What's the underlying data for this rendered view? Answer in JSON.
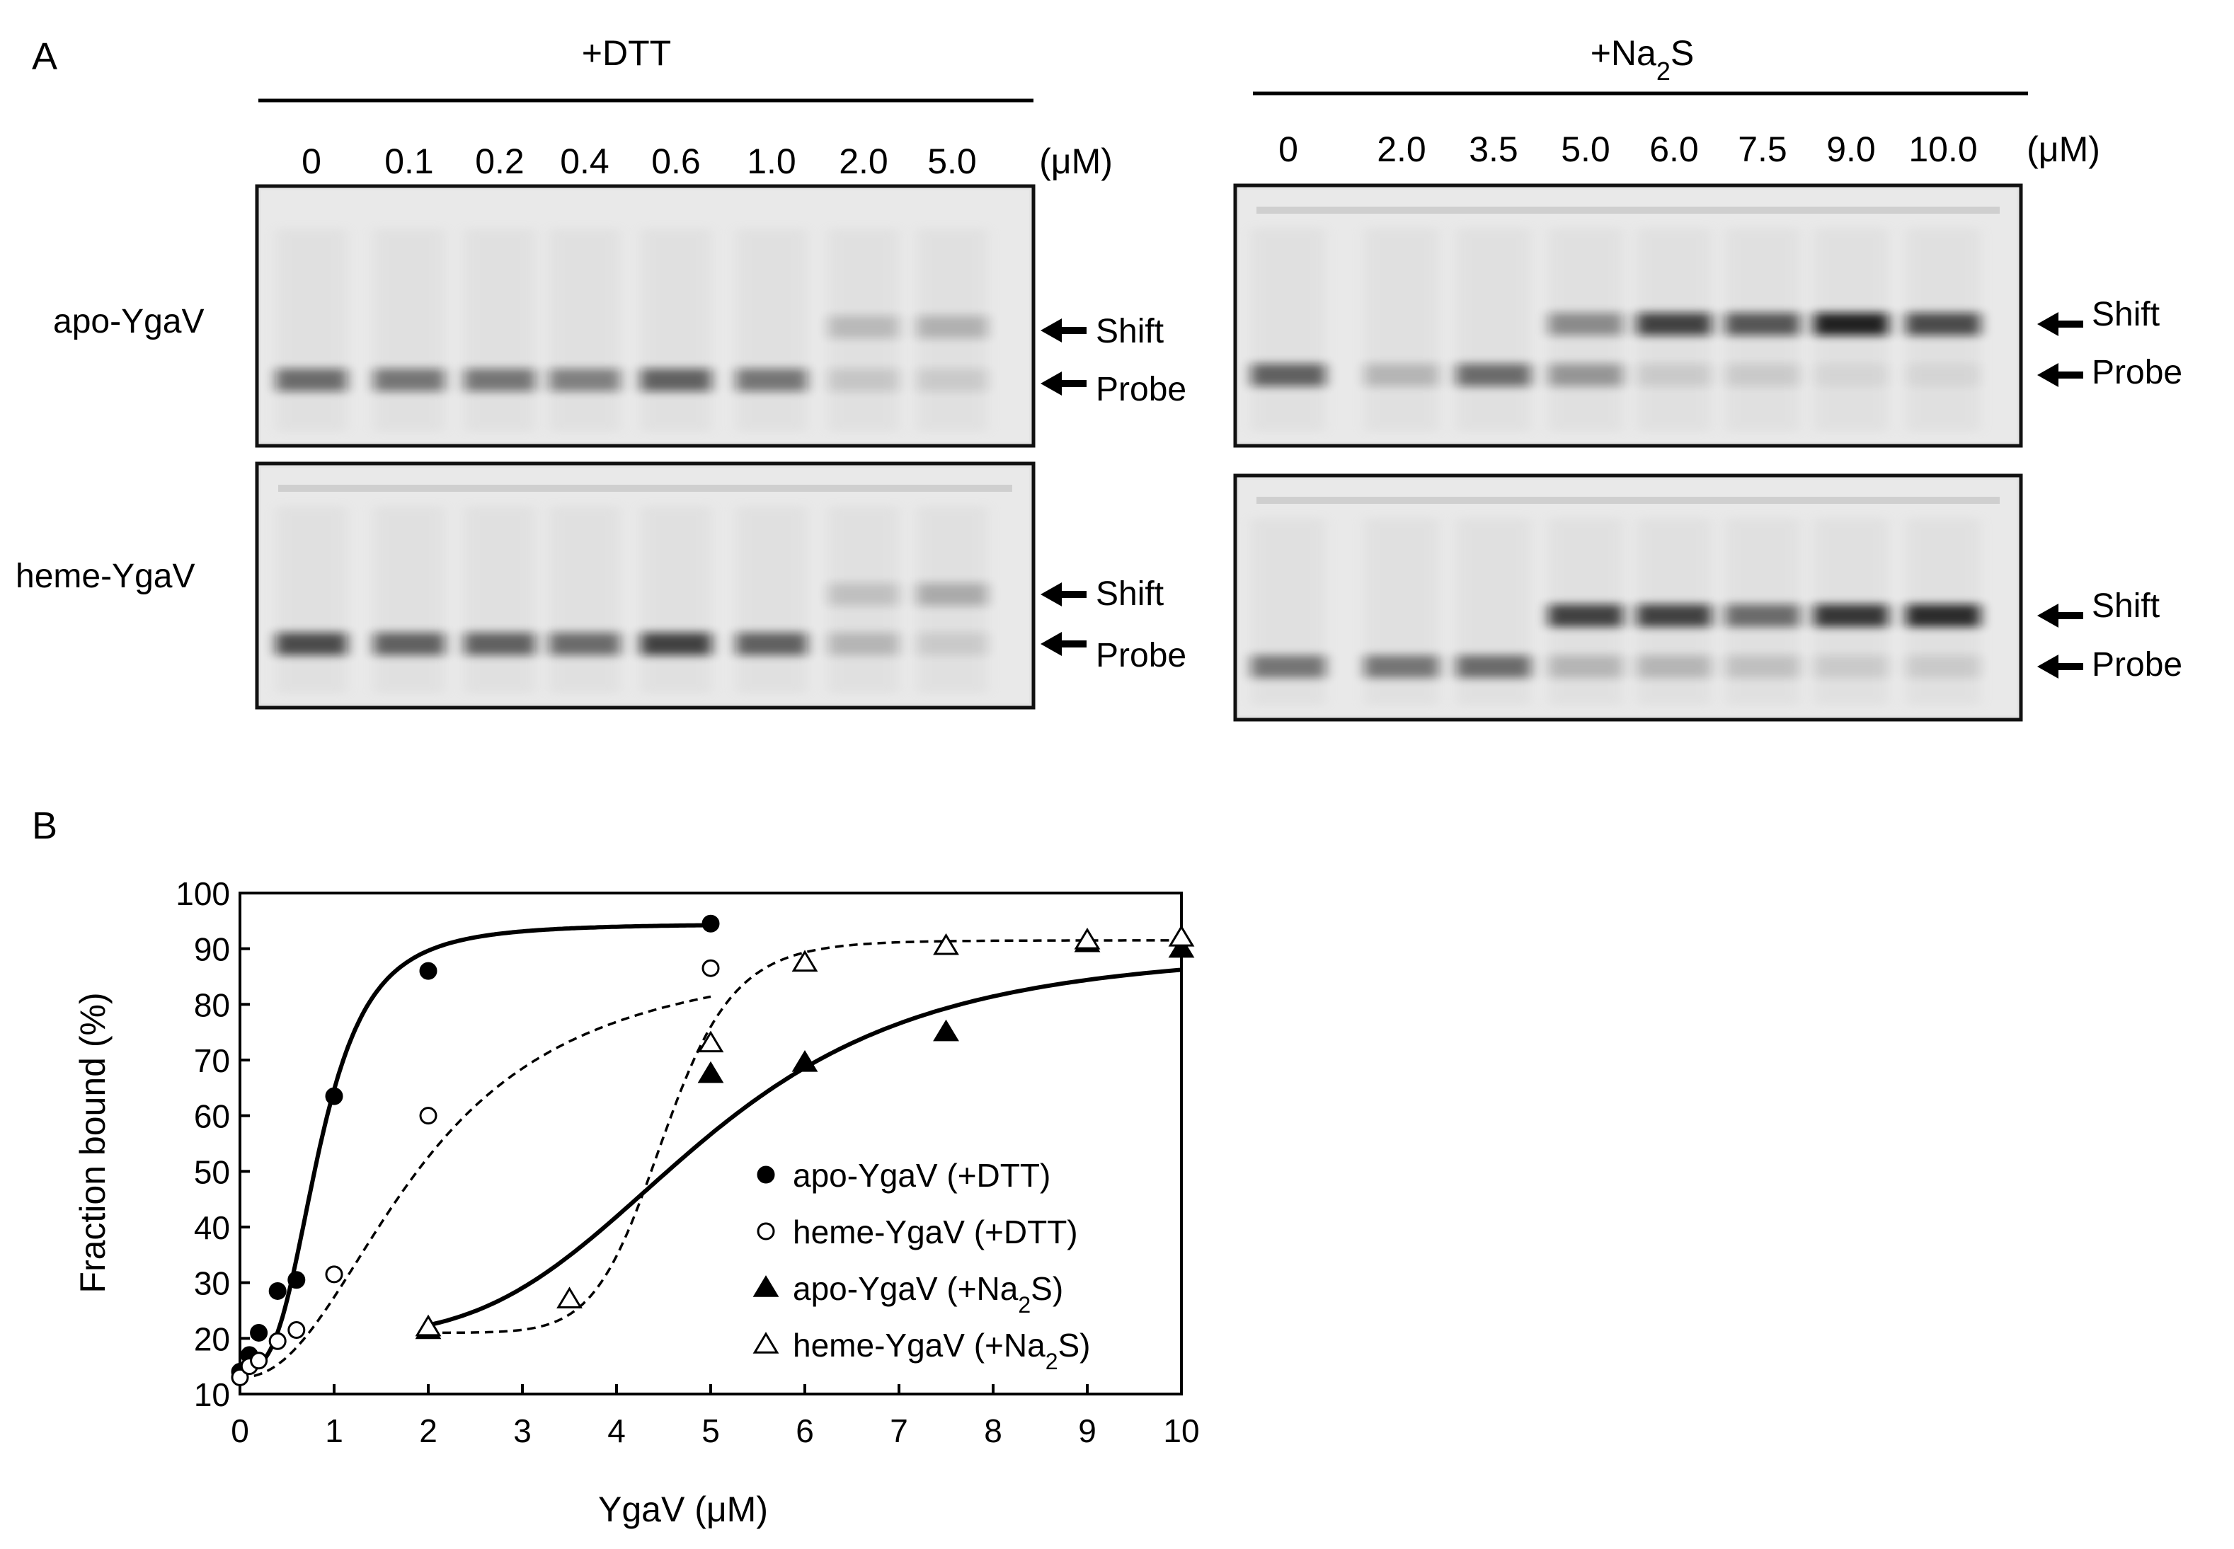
{
  "panel_a": {
    "label": "A",
    "left": {
      "condition": "+DTT",
      "concentrations": [
        "0",
        "0.1",
        "0.2",
        "0.4",
        "0.6",
        "1.0",
        "2.0",
        "5.0"
      ],
      "unit": "(μM)",
      "gels": [
        {
          "row_label": "apo-YgaV",
          "shift_label": "Shift",
          "probe_label": "Probe",
          "probe_intensity": [
            0.55,
            0.5,
            0.5,
            0.45,
            0.6,
            0.5,
            0.12,
            0.1
          ],
          "shift_intensity": [
            0,
            0,
            0,
            0,
            0,
            0,
            0.18,
            0.22
          ]
        },
        {
          "row_label": "heme-YgaV",
          "shift_label": "Shift",
          "probe_label": "Probe",
          "probe_intensity": [
            0.7,
            0.6,
            0.6,
            0.55,
            0.75,
            0.6,
            0.2,
            0.1
          ],
          "shift_intensity": [
            0,
            0,
            0,
            0,
            0,
            0,
            0.15,
            0.25
          ]
        }
      ]
    },
    "right": {
      "condition": "+Na2S",
      "condition_main": "+Na",
      "condition_sub": "2",
      "condition_end": "S",
      "concentrations": [
        "0",
        "2.0",
        "3.5",
        "5.0",
        "6.0",
        "7.5",
        "9.0",
        "10.0"
      ],
      "unit": "(μM)",
      "gels": [
        {
          "shift_label": "Shift",
          "probe_label": "Probe",
          "probe_intensity": [
            0.6,
            0.2,
            0.55,
            0.35,
            0.1,
            0.1,
            0.05,
            0.05
          ],
          "shift_intensity": [
            0,
            0,
            0,
            0.4,
            0.75,
            0.65,
            0.9,
            0.7
          ]
        },
        {
          "shift_label": "Shift",
          "probe_label": "Probe",
          "probe_intensity": [
            0.5,
            0.5,
            0.55,
            0.2,
            0.2,
            0.15,
            0.1,
            0.1
          ],
          "shift_intensity": [
            0,
            0,
            0,
            0.75,
            0.75,
            0.55,
            0.8,
            0.85
          ]
        }
      ]
    }
  },
  "panel_b": {
    "label": "B"
  },
  "chart_data": {
    "type": "scatter",
    "xlabel": "YgaV (μM)",
    "ylabel": "Fraction bound (%)",
    "xlim": [
      0,
      10
    ],
    "ylim": [
      10,
      100
    ],
    "xticks": [
      "0",
      "1",
      "2",
      "3",
      "4",
      "5",
      "6",
      "7",
      "8",
      "9",
      "10"
    ],
    "yticks": [
      "10",
      "20",
      "30",
      "40",
      "50",
      "60",
      "70",
      "80",
      "90",
      "100"
    ],
    "grid": false,
    "legend_position": "bottom-right",
    "series": [
      {
        "name": "apo-YgaV (+DTT)",
        "legend_main": "apo-YgaV (+DTT)",
        "legend_sub": "",
        "legend_end": "",
        "marker": "circle-filled",
        "line": "solid",
        "x": [
          0,
          0.1,
          0.2,
          0.4,
          0.6,
          1.0,
          2.0,
          5.0
        ],
        "y": [
          14,
          17,
          21,
          28.5,
          30.5,
          63.5,
          86,
          94.5
        ],
        "fit": {
          "top": 94.5,
          "bottom": 14.5,
          "ec50": 0.85,
          "hill": 3.2
        }
      },
      {
        "name": "heme-YgaV (+DTT)",
        "legend_main": "heme-YgaV (+DTT)",
        "legend_sub": "",
        "legend_end": "",
        "marker": "circle-open",
        "line": "dashed",
        "x": [
          0,
          0.1,
          0.2,
          0.4,
          0.6,
          1.0,
          2.0,
          5.0
        ],
        "y": [
          13,
          15,
          16,
          19.5,
          21.5,
          31.5,
          60,
          86.5
        ],
        "fit": {
          "top": 90,
          "bottom": 13,
          "ec50": 1.95,
          "hill": 2.2
        }
      },
      {
        "name": "apo-YgaV (+Na2S)",
        "legend_main": "apo-YgaV (+Na",
        "legend_sub": "2",
        "legend_end": "S)",
        "marker": "triangle-filled",
        "line": "solid",
        "x": [
          2.0,
          5.0,
          6.0,
          7.5,
          9.0,
          10.0
        ],
        "y": [
          21.5,
          67.5,
          69.5,
          75,
          91,
          90
        ],
        "fit": {
          "top": 90,
          "bottom": 20.5,
          "ec50": 4.9,
          "hill": 4.0
        }
      },
      {
        "name": "heme-YgaV (+Na2S)",
        "legend_main": "heme-YgaV (+Na",
        "legend_sub": "2",
        "legend_end": "S)",
        "marker": "triangle-open",
        "line": "dashed",
        "x": [
          2.0,
          3.5,
          5.0,
          6.0,
          7.5,
          9.0,
          10.0
        ],
        "y": [
          22,
          27,
          73,
          87.5,
          90.5,
          91.5,
          92
        ],
        "fit": {
          "top": 91.5,
          "bottom": 21,
          "ec50": 4.5,
          "hill": 12
        }
      }
    ]
  }
}
